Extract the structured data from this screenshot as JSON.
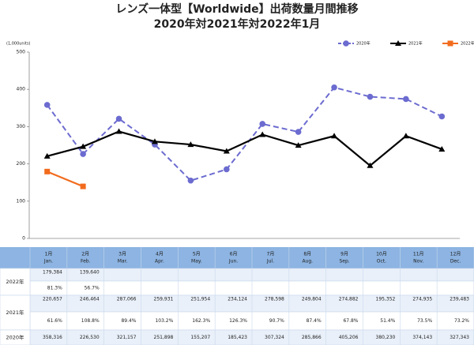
{
  "chart_data": {
    "type": "line",
    "title": "レンズ一体型【Worldwide】出荷数量月間推移",
    "subtitle": "2020年対2021年対2022年1月",
    "y_unit": "(1,000units)",
    "categories": [
      "1月",
      "2月",
      "3月",
      "4月",
      "5月",
      "6月",
      "7月",
      "8月",
      "9月",
      "10月",
      "11月",
      "12月"
    ],
    "categories_en": [
      "Jan.",
      "Feb.",
      "Mar.",
      "Apr.",
      "May.",
      "Jun.",
      "Jul.",
      "Aug.",
      "Sep.",
      "Oct.",
      "Nov.",
      "Dec."
    ],
    "ylim": [
      0,
      500
    ],
    "yticks": [
      0,
      100,
      200,
      300,
      400,
      500
    ],
    "grid": false,
    "legend": "top-right",
    "series": [
      {
        "name": "2020年",
        "color": "#6b6bd0",
        "dashed": true,
        "marker": "circle",
        "values": [
          358.316,
          226.53,
          321.157,
          251.898,
          155.207,
          185.423,
          307.324,
          285.866,
          405.206,
          380.23,
          374.143,
          327.343
        ]
      },
      {
        "name": "2021年",
        "color": "#000000",
        "dashed": false,
        "marker": "triangle",
        "values": [
          220.657,
          246.464,
          287.066,
          259.931,
          251.954,
          234.124,
          278.598,
          249.804,
          274.882,
          195.352,
          274.935,
          239.483
        ]
      },
      {
        "name": "2022年",
        "color": "#f26b1d",
        "dashed": false,
        "marker": "square",
        "values": [
          179.384,
          139.64,
          null,
          null,
          null,
          null,
          null,
          null,
          null,
          null,
          null,
          null
        ]
      }
    ]
  },
  "table": {
    "rows": [
      {
        "label": "2022年",
        "values": [
          "179,384",
          "139,640"
        ],
        "ratios": [
          "81.3%",
          "56.7%"
        ]
      },
      {
        "label": "2021年",
        "values": [
          "220,657",
          "246,464",
          "287,066",
          "259,931",
          "251,954",
          "234,124",
          "278,598",
          "249,804",
          "274,882",
          "195,352",
          "274,935",
          "239,483"
        ],
        "ratios": [
          "61.6%",
          "108.8%",
          "89.4%",
          "103.2%",
          "162.3%",
          "126.3%",
          "90.7%",
          "87.4%",
          "67.8%",
          "51.4%",
          "73.5%",
          "73.2%"
        ]
      },
      {
        "label": "2020年",
        "values": [
          "358,316",
          "226,530",
          "321,157",
          "251,898",
          "155,207",
          "185,423",
          "307,324",
          "285,866",
          "405,206",
          "380,230",
          "374,143",
          "327,343"
        ]
      }
    ]
  }
}
